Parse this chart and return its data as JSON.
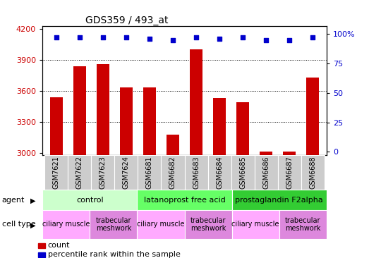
{
  "title": "GDS359 / 493_at",
  "samples": [
    "GSM7621",
    "GSM7622",
    "GSM7623",
    "GSM7624",
    "GSM6681",
    "GSM6682",
    "GSM6683",
    "GSM6684",
    "GSM6685",
    "GSM6686",
    "GSM6687",
    "GSM6688"
  ],
  "counts": [
    3540,
    3840,
    3860,
    3630,
    3630,
    3175,
    4000,
    3530,
    3490,
    3010,
    3010,
    3730
  ],
  "percentile_ranks": [
    97,
    97,
    97,
    97,
    96,
    95,
    97,
    96,
    97,
    95,
    95,
    97
  ],
  "ylim_left": [
    2980,
    4230
  ],
  "ylim_right": [
    -2.6,
    107
  ],
  "yticks_left": [
    3000,
    3300,
    3600,
    3900,
    4200
  ],
  "yticks_right": [
    0,
    25,
    50,
    75,
    100
  ],
  "bar_color": "#cc0000",
  "dot_color": "#0000cc",
  "bar_width": 0.55,
  "agents": [
    {
      "label": "control",
      "start": 0,
      "end": 4,
      "color": "#ccffcc"
    },
    {
      "label": "latanoprost free acid",
      "start": 4,
      "end": 8,
      "color": "#66ff66"
    },
    {
      "label": "prostaglandin F2alpha",
      "start": 8,
      "end": 12,
      "color": "#33cc33"
    }
  ],
  "cell_types": [
    {
      "label": "ciliary muscle",
      "start": 0,
      "end": 2,
      "color": "#ffaaff"
    },
    {
      "label": "trabecular\nmeshwork",
      "start": 2,
      "end": 4,
      "color": "#dd88dd"
    },
    {
      "label": "ciliary muscle",
      "start": 4,
      "end": 6,
      "color": "#ffaaff"
    },
    {
      "label": "trabecular\nmeshwork",
      "start": 6,
      "end": 8,
      "color": "#dd88dd"
    },
    {
      "label": "ciliary muscle",
      "start": 8,
      "end": 10,
      "color": "#ffaaff"
    },
    {
      "label": "trabecular\nmeshwork",
      "start": 10,
      "end": 12,
      "color": "#dd88dd"
    }
  ],
  "bar_label_color": "#cc0000",
  "ylabel_right_color": "#0000cc",
  "grid_color": "#000000",
  "sample_box_color": "#cccccc",
  "title_fontsize": 10,
  "tick_fontsize": 7,
  "legend_fontsize": 8,
  "agent_fontsize": 8,
  "cell_type_fontsize": 7,
  "row_label_fontsize": 8,
  "n_samples": 12,
  "pct_label": "100%"
}
